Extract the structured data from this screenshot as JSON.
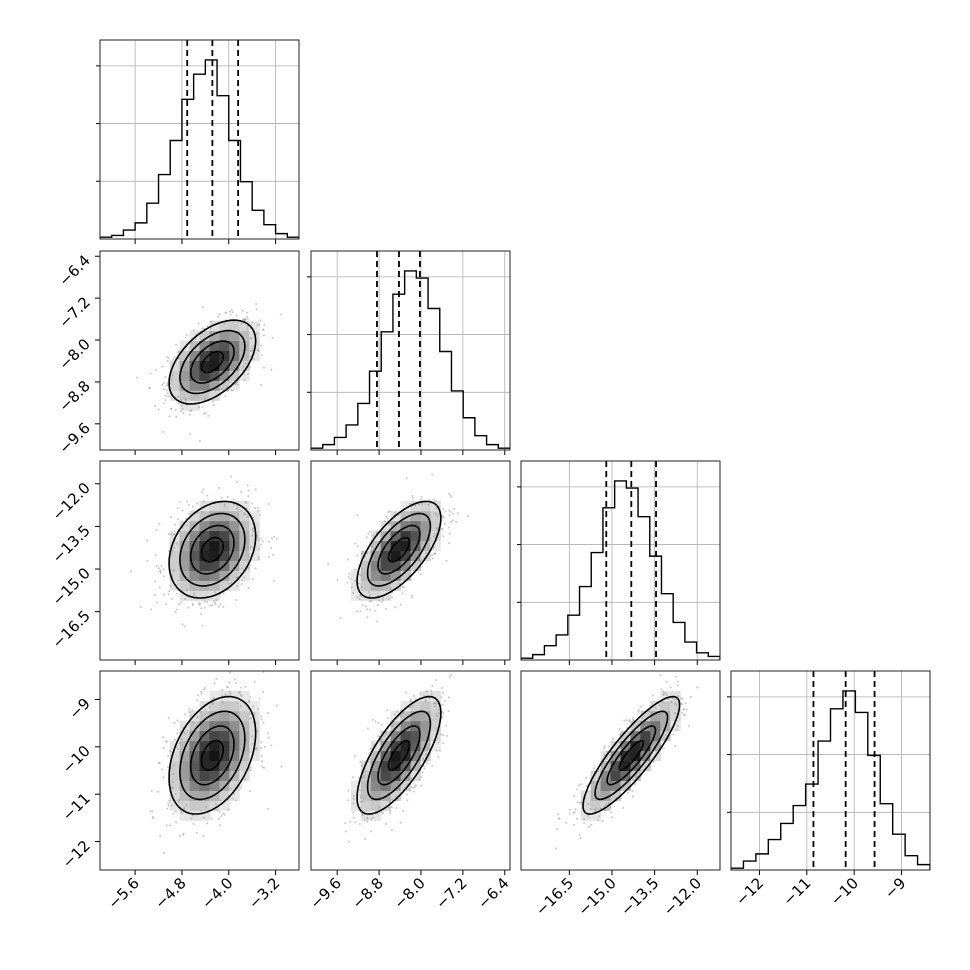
{
  "chart_data": {
    "type": "corner",
    "parameters": 4,
    "axes": [
      {
        "ticks": [
          -5.6,
          -4.8,
          -4.0,
          -3.2
        ],
        "tick_labels": [
          "−5.6",
          "−4.8",
          "−4.0",
          "−3.2"
        ],
        "range": [
          -6.2,
          -2.8
        ]
      },
      {
        "ticks": [
          -9.6,
          -8.8,
          -8.0,
          -7.2,
          -6.4
        ],
        "tick_labels": [
          "−9.6",
          "−8.8",
          "−8.0",
          "−7.2",
          "−6.4"
        ],
        "range": [
          -10.1,
          -6.3
        ]
      },
      {
        "ticks": [
          -16.5,
          -15.0,
          -13.5,
          -12.0
        ],
        "tick_labels": [
          "−16.5",
          "−15.0",
          "−13.5",
          "−12.0"
        ],
        "range": [
          -18.2,
          -11.2
        ]
      },
      {
        "ticks": [
          -12,
          -11,
          -10,
          -9
        ],
        "tick_labels": [
          "−12",
          "−11",
          "−10",
          "−9"
        ],
        "range": [
          -12.6,
          -8.4
        ]
      }
    ],
    "diagonal_histograms": [
      {
        "bins": [
          -6.2,
          -2.8
        ],
        "counts": [
          1,
          2,
          5,
          9,
          20,
          36,
          55,
          78,
          92,
          100,
          80,
          55,
          32,
          16,
          8,
          3,
          1
        ],
        "quantiles": [
          -4.71,
          -4.28,
          -3.84
        ],
        "median": -4.28
      },
      {
        "bins": [
          -10.1,
          -6.3
        ],
        "counts": [
          1,
          3,
          7,
          14,
          26,
          44,
          66,
          87,
          100,
          96,
          79,
          55,
          33,
          18,
          8,
          3,
          1
        ],
        "quantiles": [
          -8.84,
          -8.42,
          -8.02
        ],
        "median": -8.42
      },
      {
        "bins": [
          -18.2,
          -11.2
        ],
        "counts": [
          1,
          3,
          8,
          14,
          25,
          41,
          60,
          85,
          100,
          96,
          80,
          58,
          37,
          21,
          10,
          4,
          2
        ],
        "quantiles": [
          -15.2,
          -14.32,
          -13.45
        ],
        "median": -14.32
      },
      {
        "bins": [
          -12.6,
          -8.4
        ],
        "counts": [
          1,
          5,
          9,
          17,
          26,
          36,
          48,
          72,
          90,
          100,
          88,
          64,
          37,
          20,
          8,
          3
        ],
        "quantiles": [
          -10.86,
          -10.18,
          -9.57
        ],
        "median": -10.18
      }
    ],
    "pairs": [
      {
        "row": 1,
        "col": 0,
        "mean": [
          -4.28,
          -8.42
        ],
        "sd": [
          0.37,
          0.4
        ],
        "corr": 0.5
      },
      {
        "row": 2,
        "col": 0,
        "mean": [
          -4.28,
          -14.32
        ],
        "sd": [
          0.37,
          0.85
        ],
        "corr": 0.28
      },
      {
        "row": 2,
        "col": 1,
        "mean": [
          -8.42,
          -14.32
        ],
        "sd": [
          0.4,
          0.85
        ],
        "corr": 0.65
      },
      {
        "row": 3,
        "col": 0,
        "mean": [
          -4.28,
          -10.18
        ],
        "sd": [
          0.37,
          0.62
        ],
        "corr": 0.38
      },
      {
        "row": 3,
        "col": 1,
        "mean": [
          -8.42,
          -10.18
        ],
        "sd": [
          0.4,
          0.62
        ],
        "corr": 0.72
      },
      {
        "row": 3,
        "col": 2,
        "mean": [
          -14.32,
          -10.18
        ],
        "sd": [
          0.85,
          0.62
        ],
        "corr": 0.86
      }
    ],
    "contour_levels_sigma": [
      0.5,
      1.0,
      1.5,
      2.0
    ],
    "grid": true
  }
}
